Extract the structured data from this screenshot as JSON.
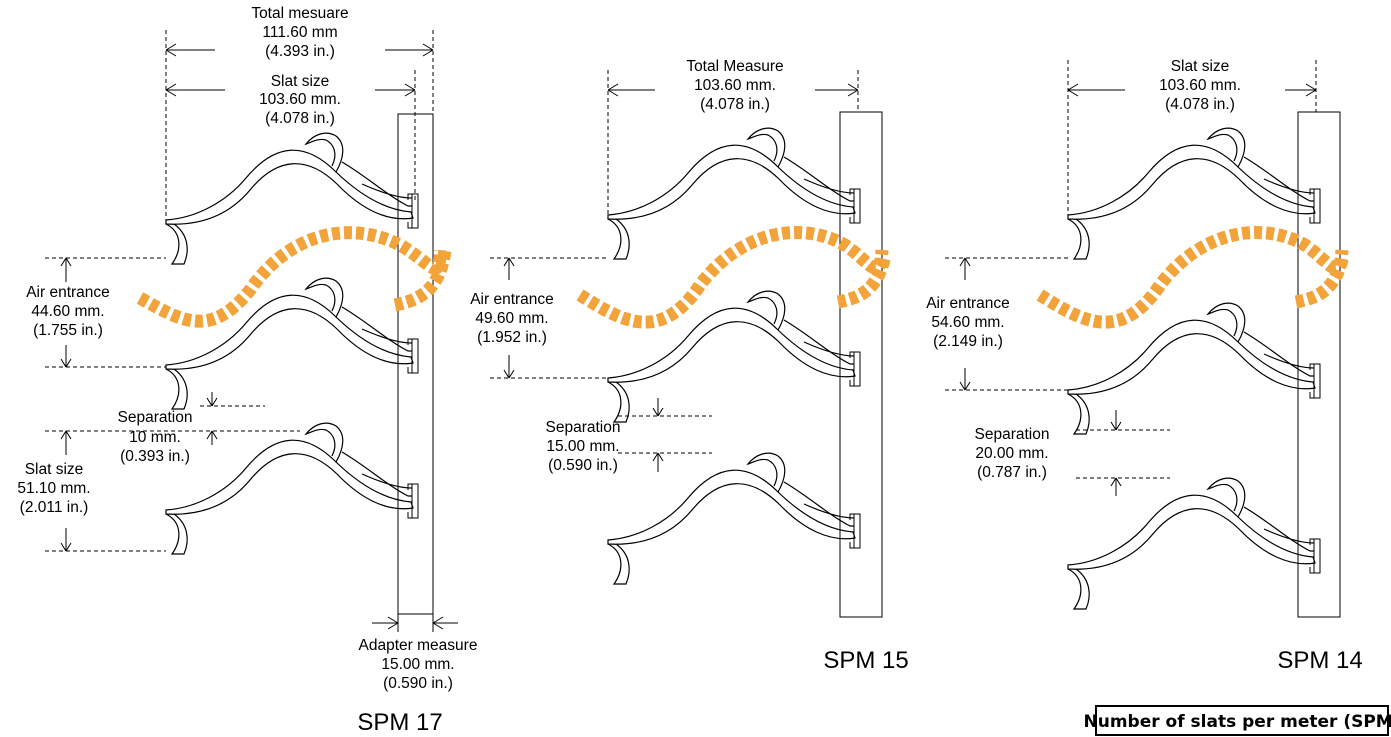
{
  "colors": {
    "airflow": "#F2A33A",
    "line": "#000000",
    "background": "#ffffff"
  },
  "spm17": {
    "title": "SPM 17",
    "total": [
      "Total mesuare",
      "111.60 mm",
      "(4.393 in.)"
    ],
    "slat_top": [
      "Slat size",
      "103.60 mm.",
      "(4.078 in.)"
    ],
    "air": [
      "Air entrance",
      "44.60 mm.",
      "(1.755 in.)"
    ],
    "separation": [
      "Separation",
      "10 mm.",
      "(0.393 in.)"
    ],
    "slat_side": [
      "Slat size",
      "51.10 mm.",
      "(2.011 in.)"
    ],
    "adapter": [
      "Adapter measure",
      "15.00 mm.",
      "(0.590 in.)"
    ]
  },
  "spm15": {
    "title": "SPM 15",
    "total": [
      "Total Measure",
      "103.60 mm.",
      "(4.078 in.)"
    ],
    "air": [
      "Air entrance",
      "49.60 mm.",
      "(1.952 in.)"
    ],
    "separation": [
      "Separation",
      "15.00 mm.",
      "(0.590 in.)"
    ]
  },
  "spm14": {
    "title": "SPM 14",
    "slat_top": [
      "Slat size",
      "103.60 mm.",
      "(4.078 in.)"
    ],
    "air": [
      "Air entrance",
      "54.60 mm.",
      "(2.149 in.)"
    ],
    "separation": [
      "Separation",
      "20.00 mm.",
      "(0.787 in.)"
    ]
  },
  "legend": {
    "label": "Number of slats per meter (SPM)"
  }
}
